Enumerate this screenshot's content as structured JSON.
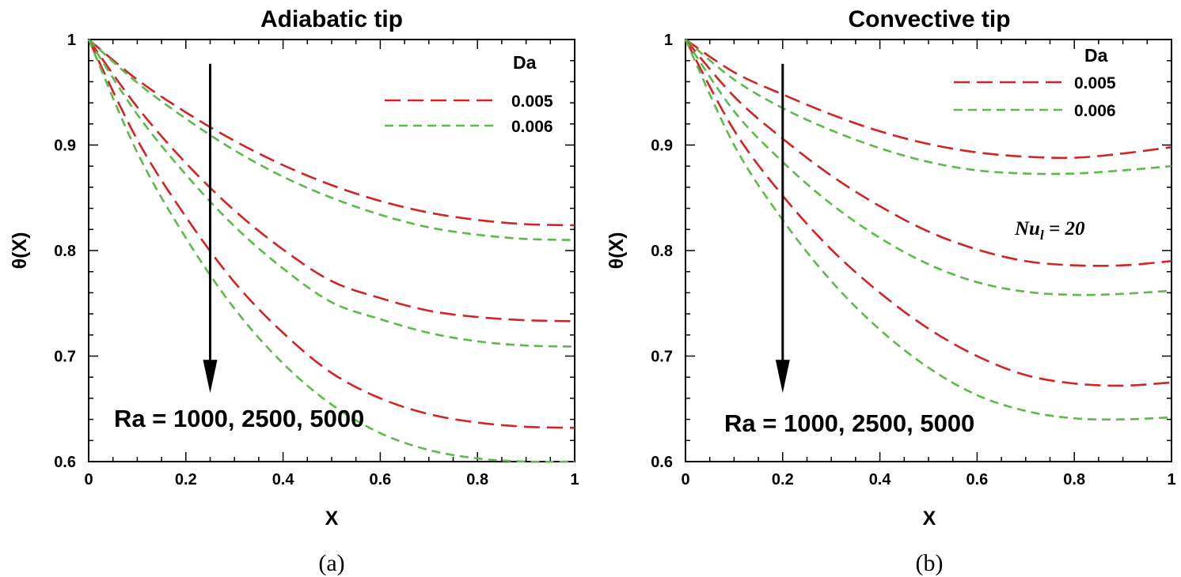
{
  "chart_data": [
    {
      "id": "a",
      "type": "line",
      "title": "Adiabatic tip",
      "xlabel": "X",
      "ylabel": "θ(X)",
      "xlim": [
        0,
        1
      ],
      "ylim": [
        0.6,
        1
      ],
      "xticks": [
        "0",
        "0.2",
        "0.4",
        "0.6",
        "0.8",
        "1"
      ],
      "yticks": [
        "0.6",
        "0.7",
        "0.8",
        "0.9",
        "1"
      ],
      "legend_title": "Da",
      "legend_position": "top-right",
      "annotation": "Ra = 1000, 2500, 5000",
      "arrow": {
        "x": 0.25,
        "y_from": 0.977,
        "y_to": 0.665
      },
      "caption": "(a)",
      "x": [
        0,
        0.1,
        0.2,
        0.3,
        0.4,
        0.5,
        0.6,
        0.7,
        0.8,
        0.9,
        1.0
      ],
      "series": [
        {
          "name": "0.005",
          "color": "#d32323",
          "dash": "long",
          "ra": "1000",
          "values": [
            1.0,
            0.962,
            0.931,
            0.904,
            0.881,
            0.862,
            0.847,
            0.836,
            0.829,
            0.825,
            0.824
          ]
        },
        {
          "name": "0.006",
          "color": "#5cb94a",
          "dash": "short",
          "ra": "1000",
          "values": [
            1.0,
            0.959,
            0.925,
            0.895,
            0.87,
            0.85,
            0.834,
            0.822,
            0.815,
            0.811,
            0.81
          ]
        },
        {
          "name": "0.005",
          "color": "#d32323",
          "dash": "long",
          "ra": "2500",
          "values": [
            1.0,
            0.936,
            0.883,
            0.838,
            0.801,
            0.771,
            0.755,
            0.743,
            0.737,
            0.734,
            0.733
          ]
        },
        {
          "name": "0.006",
          "color": "#5cb94a",
          "dash": "short",
          "ra": "2500",
          "values": [
            1.0,
            0.929,
            0.872,
            0.823,
            0.783,
            0.751,
            0.735,
            0.722,
            0.714,
            0.71,
            0.709
          ]
        },
        {
          "name": "0.005",
          "color": "#d32323",
          "dash": "long",
          "ra": "5000",
          "values": [
            1.0,
            0.905,
            0.832,
            0.77,
            0.722,
            0.684,
            0.66,
            0.645,
            0.637,
            0.633,
            0.632
          ]
        },
        {
          "name": "0.006",
          "color": "#5cb94a",
          "dash": "short",
          "ra": "5000",
          "values": [
            1.0,
            0.893,
            0.812,
            0.745,
            0.693,
            0.654,
            0.627,
            0.611,
            0.603,
            0.6,
            0.6
          ]
        }
      ]
    },
    {
      "id": "b",
      "type": "line",
      "title": "Convective tip",
      "xlabel": "X",
      "ylabel": "θ(X)",
      "xlim": [
        0,
        1
      ],
      "ylim": [
        0.6,
        1
      ],
      "xticks": [
        "0",
        "0.2",
        "0.4",
        "0.6",
        "0.8",
        "1"
      ],
      "yticks": [
        "0.6",
        "0.7",
        "0.8",
        "0.9",
        "1"
      ],
      "legend_title": "Da",
      "legend_position": "top-right",
      "annotation": "Ra = 1000, 2500, 5000",
      "note_main": "Nu",
      "note_sub": "l",
      "note_rest": " = 20",
      "arrow": {
        "x": 0.2,
        "y_from": 0.977,
        "y_to": 0.665
      },
      "caption": "(b)",
      "x": [
        0,
        0.1,
        0.2,
        0.3,
        0.4,
        0.5,
        0.6,
        0.7,
        0.8,
        0.9,
        1.0
      ],
      "series": [
        {
          "name": "0.005",
          "color": "#d32323",
          "dash": "long",
          "ra": "1000",
          "values": [
            1.0,
            0.969,
            0.948,
            0.929,
            0.913,
            0.901,
            0.893,
            0.889,
            0.888,
            0.892,
            0.898
          ]
        },
        {
          "name": "0.006",
          "color": "#5cb94a",
          "dash": "short",
          "ra": "1000",
          "values": [
            1.0,
            0.962,
            0.935,
            0.914,
            0.897,
            0.884,
            0.876,
            0.873,
            0.873,
            0.876,
            0.88
          ]
        },
        {
          "name": "0.005",
          "color": "#d32323",
          "dash": "long",
          "ra": "2500",
          "values": [
            1.0,
            0.946,
            0.906,
            0.871,
            0.842,
            0.818,
            0.801,
            0.79,
            0.786,
            0.786,
            0.79
          ]
        },
        {
          "name": "0.006",
          "color": "#5cb94a",
          "dash": "short",
          "ra": "2500",
          "values": [
            1.0,
            0.932,
            0.884,
            0.844,
            0.812,
            0.787,
            0.77,
            0.761,
            0.758,
            0.759,
            0.762
          ]
        },
        {
          "name": "0.005",
          "color": "#d32323",
          "dash": "long",
          "ra": "5000",
          "values": [
            1.0,
            0.914,
            0.852,
            0.801,
            0.76,
            0.726,
            0.7,
            0.682,
            0.674,
            0.672,
            0.675
          ]
        },
        {
          "name": "0.006",
          "color": "#5cb94a",
          "dash": "short",
          "ra": "5000",
          "values": [
            1.0,
            0.9,
            0.829,
            0.771,
            0.725,
            0.689,
            0.663,
            0.648,
            0.641,
            0.64,
            0.642
          ]
        }
      ]
    }
  ]
}
